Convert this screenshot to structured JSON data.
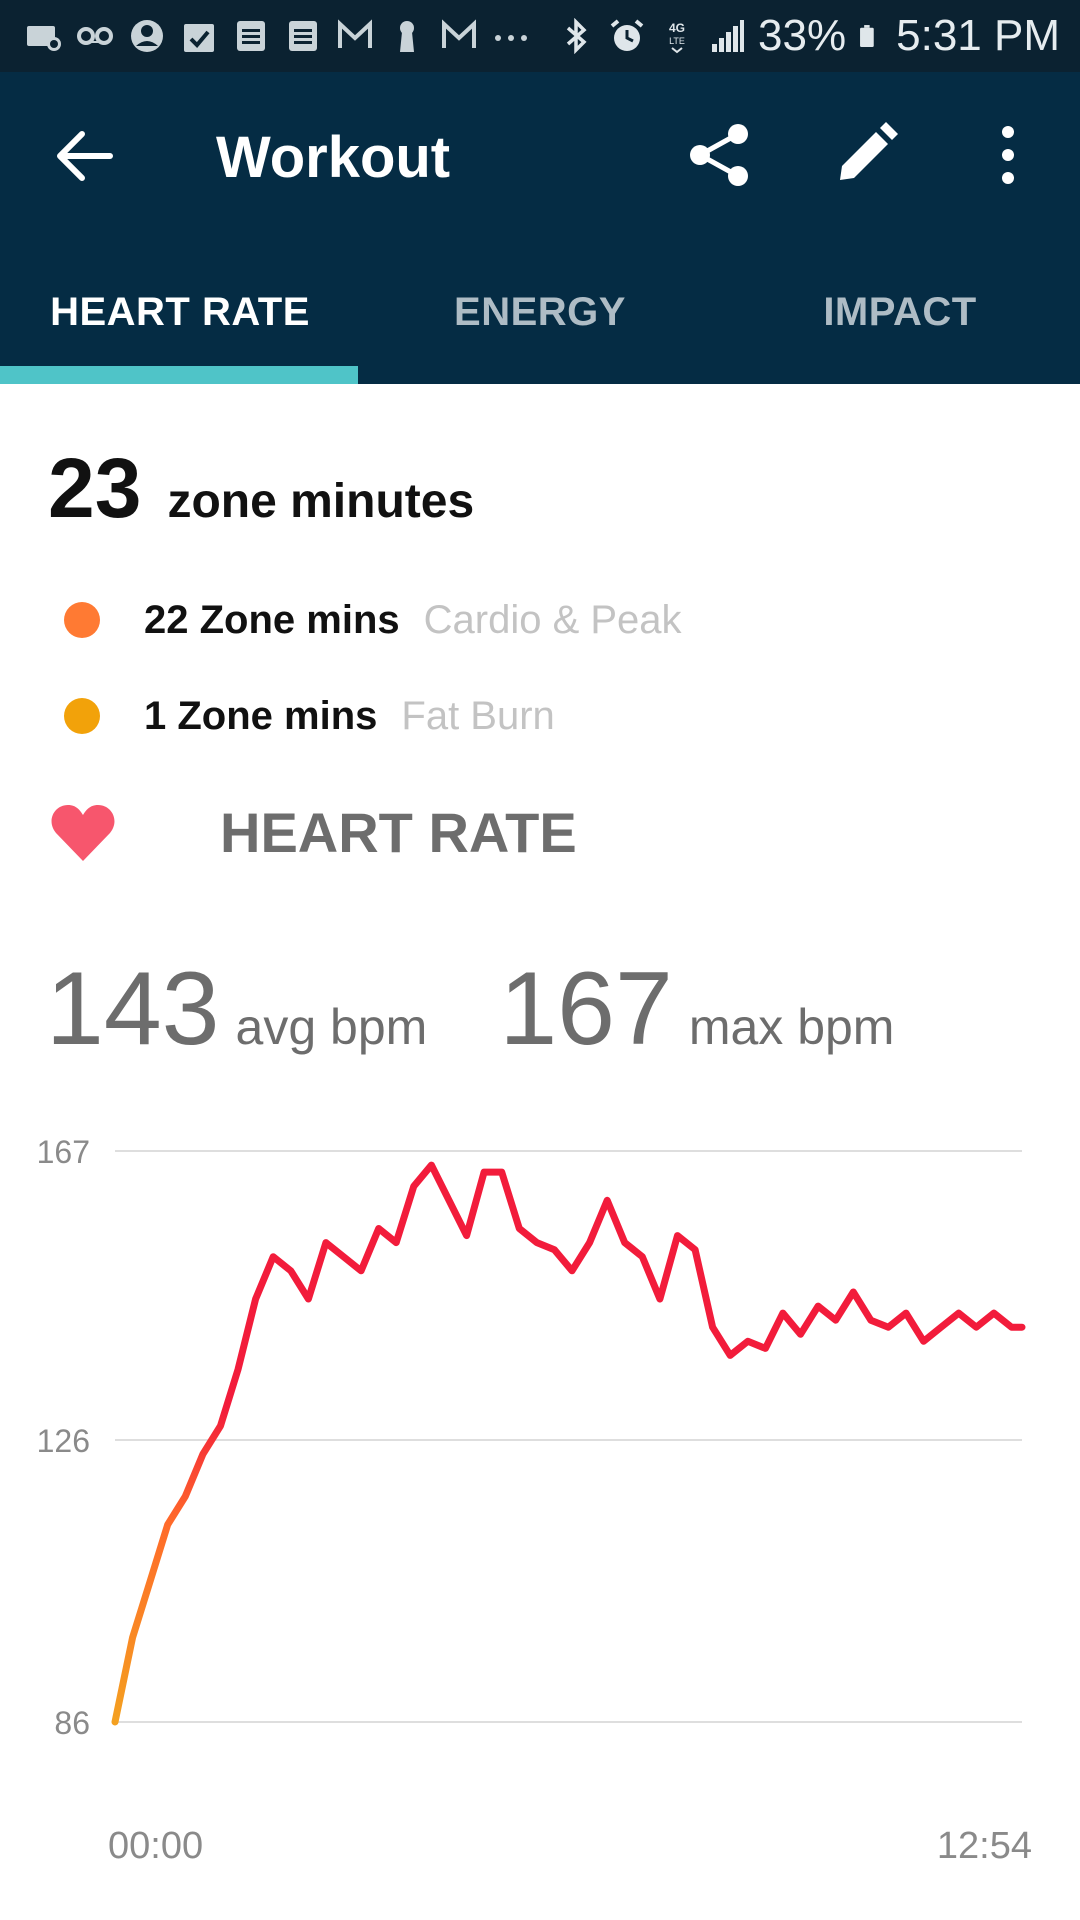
{
  "status_bar": {
    "left_icons": [
      "signal-off-icon",
      "voicemail-icon",
      "account-icon",
      "calendar-check-icon",
      "note-icon",
      "note-icon",
      "gmail-icon",
      "keyhole-icon",
      "gmail-icon",
      "more-dots-icon"
    ],
    "right_icons": [
      "bluetooth-icon",
      "alarm-icon",
      "lte-icon",
      "signal-icon",
      "battery-icon"
    ],
    "battery": "33%",
    "time": "5:31 PM"
  },
  "app_bar": {
    "title": "Workout",
    "icons": [
      "back-arrow-icon",
      "share-icon",
      "edit-icon",
      "more-vert-icon"
    ]
  },
  "tabs": [
    {
      "label": "HEART RATE",
      "active": true
    },
    {
      "label": "ENERGY",
      "active": false
    },
    {
      "label": "IMPACT",
      "active": false
    }
  ],
  "zone_summary": {
    "total": "23",
    "total_label": "zone minutes",
    "zones": [
      {
        "value": "22 Zone mins",
        "name": "Cardio & Peak",
        "color": "#ff7a33"
      },
      {
        "value": "1 Zone mins",
        "name": "Fat Burn",
        "color": "#f2a20a"
      }
    ]
  },
  "heart_rate": {
    "section_label": "HEART RATE",
    "avg": "143",
    "avg_unit": "avg bpm",
    "max": "167",
    "max_unit": "max bpm",
    "colors": {
      "peak": "#f21c3b",
      "cardio": "#ff6a2a",
      "fatburn": "#f4a020",
      "heart": "#f7566d"
    }
  },
  "chart_data": {
    "type": "line",
    "xlabel": "",
    "ylabel": "",
    "y_ticks": [
      "167",
      "126",
      "86"
    ],
    "ylim": [
      86,
      167
    ],
    "x_ticks": [
      "00:00",
      "12:54"
    ],
    "grid": true,
    "series": [
      {
        "x": [
          0,
          0.25,
          0.5,
          0.75,
          1,
          1.25,
          1.5,
          1.75,
          2,
          2.25,
          2.5,
          2.75,
          3,
          3.25,
          3.5,
          3.75,
          4,
          4.25,
          4.5,
          4.75,
          5,
          5.25,
          5.5,
          5.75,
          6,
          6.25,
          6.5,
          6.75,
          7,
          7.25,
          7.5,
          7.75,
          8,
          8.25,
          8.5,
          8.75,
          9,
          9.25,
          9.5,
          9.75,
          10,
          10.25,
          10.5,
          10.75,
          11,
          11.25,
          11.5,
          11.75,
          12,
          12.25,
          12.5,
          12.75,
          12.9
        ],
        "values": [
          86,
          98,
          106,
          114,
          118,
          124,
          128,
          136,
          146,
          152,
          150,
          146,
          154,
          152,
          150,
          156,
          154,
          162,
          165,
          160,
          155,
          164,
          164,
          156,
          154,
          153,
          150,
          154,
          160,
          154,
          152,
          146,
          155,
          153,
          142,
          138,
          140,
          139,
          144,
          141,
          145,
          143,
          147,
          143,
          142,
          144,
          140,
          142,
          144,
          142,
          144,
          142,
          142
        ]
      }
    ]
  }
}
